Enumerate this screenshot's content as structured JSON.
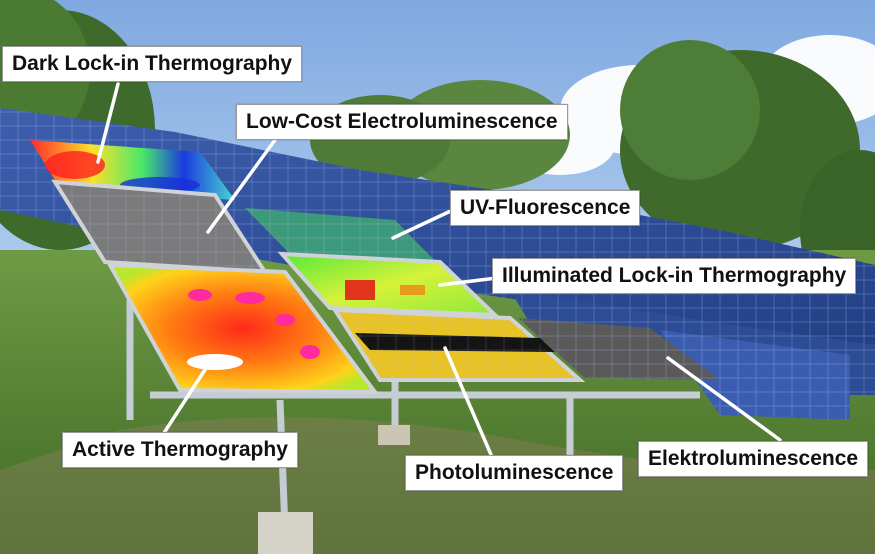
{
  "labels": {
    "dark_lockin": "Dark Lock-in Thermography",
    "low_cost_el": "Low-Cost Electroluminescence",
    "uv_fluorescence": "UV-Fluorescence",
    "illuminated_lockin": "Illuminated Lock-in Thermography",
    "active_thermography": "Active Thermography",
    "photoluminescence": "Photoluminescence",
    "elektroluminescence": "Elektroluminescence"
  },
  "colors": {
    "sky": "#8fb6e6",
    "grass": "#5f8a3a",
    "panel_blue": "#2f4f9a",
    "frame": "#b9bec6",
    "leader_line": "#ffffff"
  }
}
